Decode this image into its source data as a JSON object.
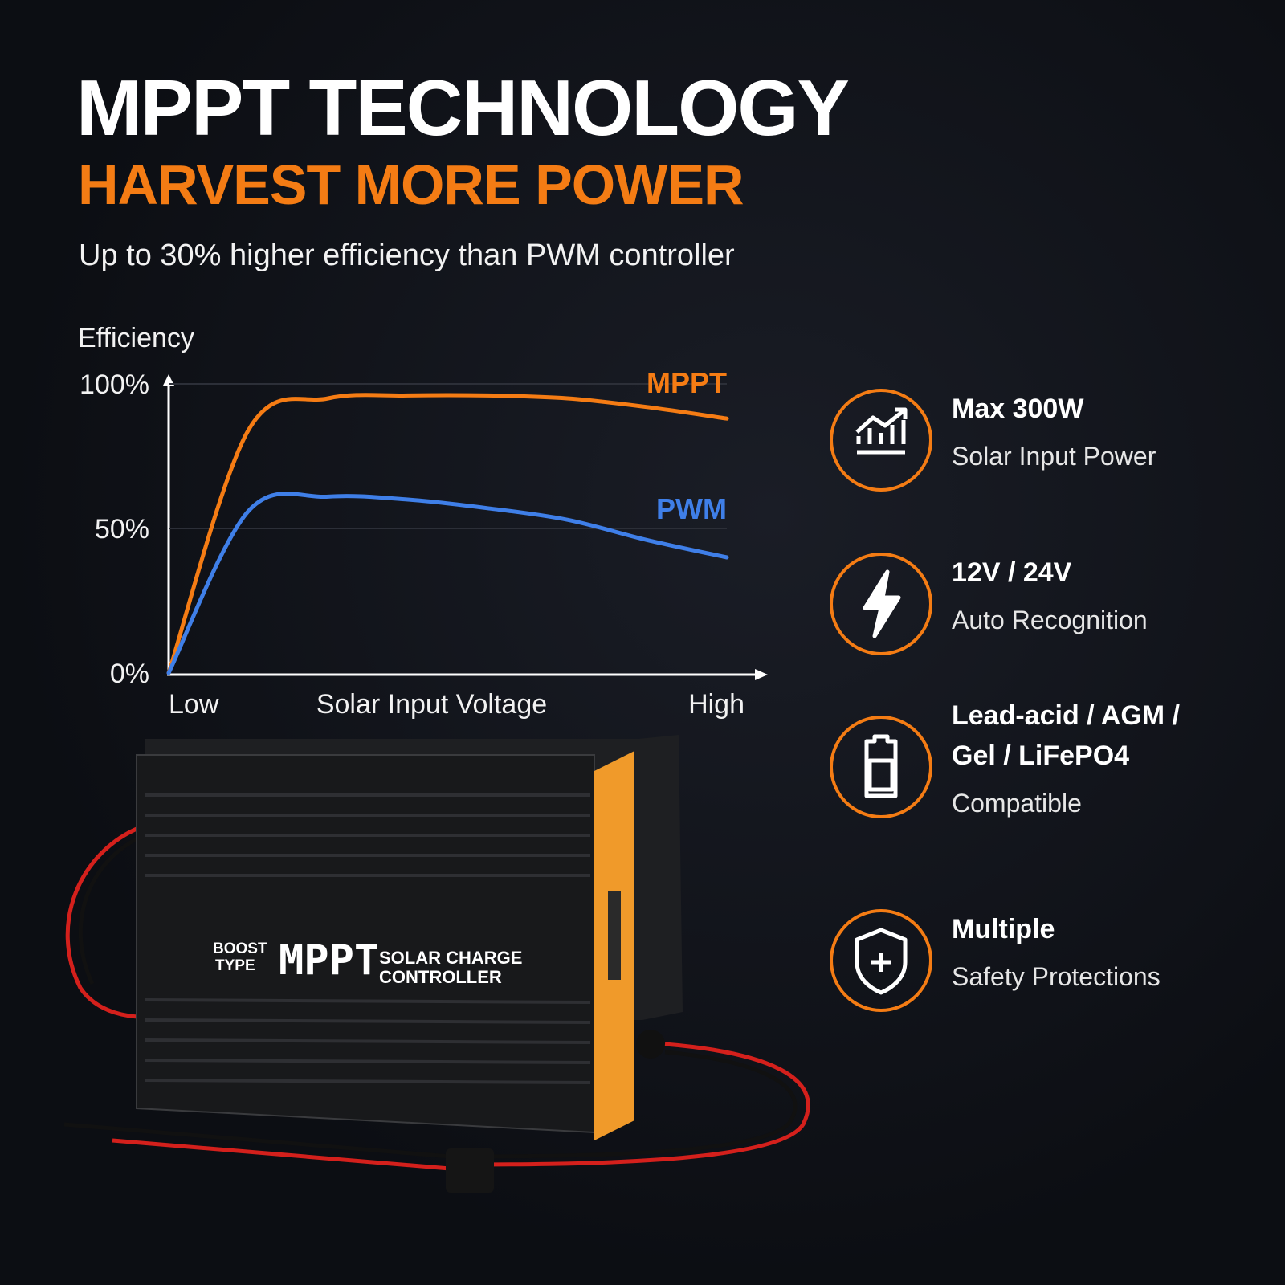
{
  "header": {
    "title": "MPPT TECHNOLOGY",
    "subtitle": "HARVEST MORE POWER",
    "tagline": "Up to 30% higher efficiency than PWM controller"
  },
  "chart_data": {
    "type": "line",
    "y_label": "Efficiency",
    "x_label": "Solar Input Voltage",
    "categories": [
      "Low",
      null,
      null,
      null,
      null,
      null,
      null,
      "High"
    ],
    "series": [
      {
        "name": "MPPT",
        "color": "#f57c14",
        "values": [
          0,
          84,
          95,
          96,
          96,
          95,
          92,
          88
        ]
      },
      {
        "name": "PWM",
        "color": "#3f7fe8",
        "values": [
          0,
          56,
          61,
          60,
          57,
          53,
          46,
          40
        ]
      }
    ],
    "ylim": [
      0,
      100
    ],
    "yticks": [
      {
        "value": 0,
        "label": "0%"
      },
      {
        "value": 50,
        "label": "50%"
      },
      {
        "value": 100,
        "label": "100%"
      }
    ],
    "grid": true
  },
  "features": [
    {
      "title_lines": [
        "Max 300W"
      ],
      "text": "Solar Input Power"
    },
    {
      "title_lines": [
        "12V / 24V"
      ],
      "text": "Auto Recognition"
    },
    {
      "title_lines": [
        "Lead-acid / AGM /",
        "Gel / LiFePO4"
      ],
      "text": "Compatible"
    },
    {
      "title_lines": [
        "Multiple"
      ],
      "text": "Safety Protections"
    }
  ],
  "device": {
    "type_label": [
      "BOOST",
      "TYPE"
    ],
    "brand": "MPPT",
    "product_label": [
      "SOLAR CHARGE",
      "CONTROLLER"
    ]
  }
}
